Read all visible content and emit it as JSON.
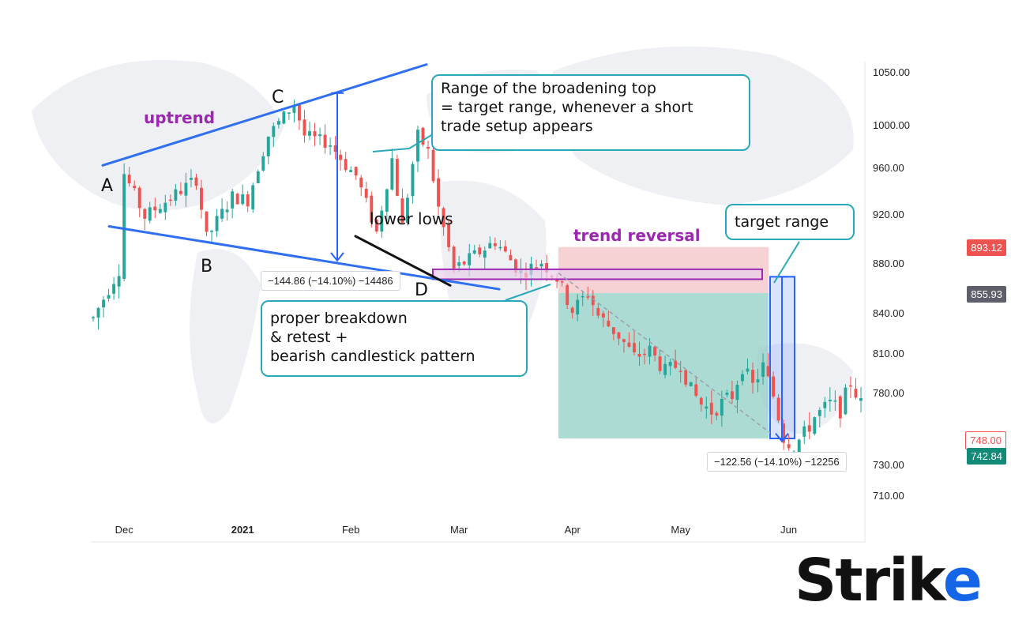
{
  "chart_data": {
    "type": "candlestick",
    "title": "",
    "ylim": [
      700,
      1062
    ],
    "y_ticks": [
      1050,
      1000,
      960,
      920,
      880,
      840,
      810,
      780,
      730,
      710
    ],
    "y_tick_labels": [
      "1050.00",
      "1000.00",
      "960.00",
      "920.00",
      "880.00",
      "840.00",
      "810.00",
      "780.00",
      "730.00",
      "710.00"
    ],
    "x_ticks": [
      "Dec",
      "2021",
      "Feb",
      "Mar",
      "Apr",
      "May",
      "Jun"
    ],
    "grid": false,
    "price_labels": {
      "red_upper": "893.12",
      "gray": "855.93",
      "red_lower": "748.00",
      "green": "742.84"
    },
    "trend_points": {
      "A": 960,
      "B": 900,
      "C": 1027,
      "D": 869
    },
    "annotations": {
      "A": "A",
      "B": "B",
      "C": "C",
      "D": "D",
      "uptrend": "uptrend",
      "lower_lows": "lower lows",
      "trend_reversal": "trend reversal",
      "measure_left": "−144.86 (−14.10%) −14486",
      "measure_right": "−122.56 (−14.10%) −12256"
    },
    "callouts": {
      "broadening": [
        "Range of the broadening top",
        "= target range, whenever a short",
        "trade setup appears"
      ],
      "target": [
        "target range"
      ],
      "breakdown": [
        "proper breakdown",
        "& retest +",
        "bearish candlestick pattern"
      ]
    }
  },
  "logo": {
    "text": "Stri",
    "k_letter": "k",
    "e_letter": "e"
  },
  "colors": {
    "up": "#26a69a",
    "down": "#ef5350",
    "trendline": "#2f6ff0",
    "callout_border": "#2aa8b8",
    "annotation_purple": "#9c27b0",
    "measure_blue": "#2962ff",
    "target_zone": "#8fcfc4",
    "stop_zone": "#f4c3c6",
    "logo_blue": "#1565e8"
  }
}
